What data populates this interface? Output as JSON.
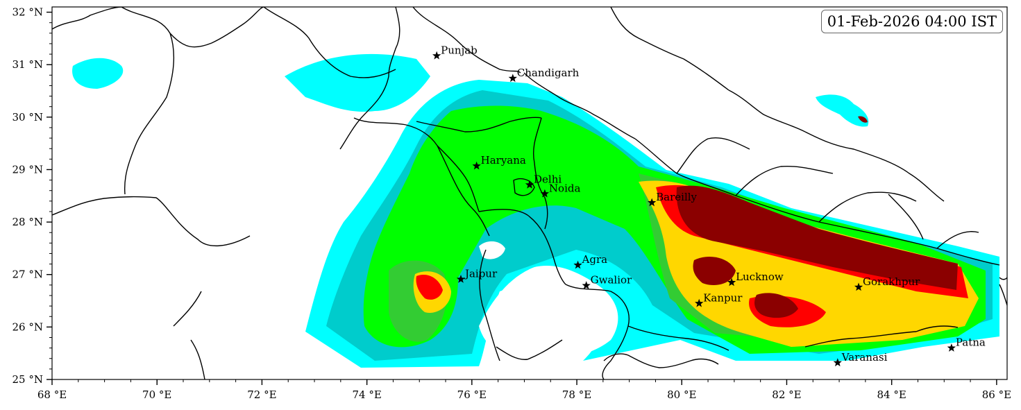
{
  "timestamp": "01-Feb-2026 04:00 IST",
  "map": {
    "lon_range": [
      68,
      86.2
    ],
    "lat_range": [
      25,
      32.1
    ],
    "x_ticks": [
      "68 °E",
      "70 °E",
      "72 °E",
      "74 °E",
      "76 °E",
      "78 °E",
      "80 °E",
      "82 °E",
      "84 °E",
      "86 °E"
    ],
    "x_tick_values": [
      68,
      70,
      72,
      74,
      76,
      78,
      80,
      82,
      84,
      86
    ],
    "y_ticks": [
      "25 °N",
      "26 °N",
      "27 °N",
      "28 °N",
      "29 °N",
      "30 °N",
      "31 °N",
      "32 °N"
    ],
    "y_tick_values": [
      25,
      26,
      27,
      28,
      29,
      30,
      31,
      32
    ],
    "fill_colors": [
      "#00ffff",
      "#00cccc",
      "#00ff00",
      "#33cc33",
      "#ffd700",
      "#ff0000",
      "#8b0000"
    ]
  },
  "cities": [
    {
      "name": "Punjab",
      "lon": 75.33,
      "lat": 31.17
    },
    {
      "name": "Chandigarh",
      "lon": 76.78,
      "lat": 30.74
    },
    {
      "name": "Haryana",
      "lon": 76.09,
      "lat": 29.07
    },
    {
      "name": "Delhi",
      "lon": 77.1,
      "lat": 28.71
    },
    {
      "name": "Noida",
      "lon": 77.39,
      "lat": 28.54
    },
    {
      "name": "Bareilly",
      "lon": 79.43,
      "lat": 28.37
    },
    {
      "name": "Agra",
      "lon": 78.02,
      "lat": 27.18
    },
    {
      "name": "Jaipur",
      "lon": 75.79,
      "lat": 26.91
    },
    {
      "name": "Gwalior",
      "lon": 78.18,
      "lat": 26.79
    },
    {
      "name": "Lucknow",
      "lon": 80.95,
      "lat": 26.85
    },
    {
      "name": "Kanpur",
      "lon": 80.33,
      "lat": 26.45
    },
    {
      "name": "Gorakhpur",
      "lon": 83.37,
      "lat": 26.76
    },
    {
      "name": "Varanasi",
      "lon": 82.97,
      "lat": 25.32
    },
    {
      "name": "Patna",
      "lon": 85.14,
      "lat": 25.6
    }
  ]
}
